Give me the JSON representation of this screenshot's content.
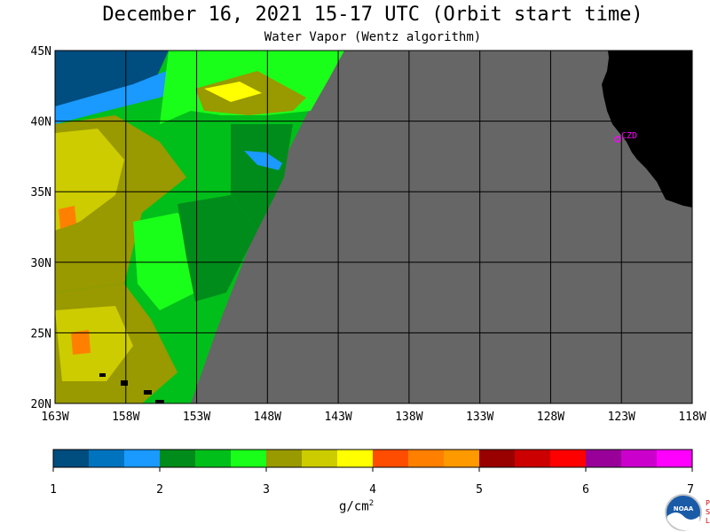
{
  "title": "December 16, 2021  15-17 UTC  (Orbit start time)",
  "subtitle": "Water Vapor (Wentz algorithm)",
  "lat_labels": [
    "45N",
    "40N",
    "35N",
    "30N",
    "25N",
    "20N"
  ],
  "lon_labels": [
    "163W",
    "158W",
    "153W",
    "148W",
    "143W",
    "138W",
    "133W",
    "128W",
    "123W",
    "118W"
  ],
  "station": {
    "label": "CZD"
  },
  "colorbar": {
    "tick_labels": [
      "1",
      "2",
      "3",
      "4",
      "5",
      "6",
      "7"
    ],
    "units_base": "g/cm",
    "units_exp": "2",
    "colors": [
      "#004d80",
      "#0073bf",
      "#1a99ff",
      "#008c1a",
      "#00bf1a",
      "#1aff1a",
      "#999900",
      "#cccc00",
      "#ffff00",
      "#ff4d00",
      "#ff8000",
      "#ff9900",
      "#990000",
      "#cc0000",
      "#ff0000",
      "#990099",
      "#cc00cc",
      "#ff00ff"
    ]
  },
  "palette": {
    "land": "#000000",
    "no_data": "#666666",
    "grid": "#000000",
    "station": "#ff00ff"
  },
  "logo": {
    "text": "NOAA",
    "side_letters": [
      "P",
      "S",
      "L"
    ]
  }
}
